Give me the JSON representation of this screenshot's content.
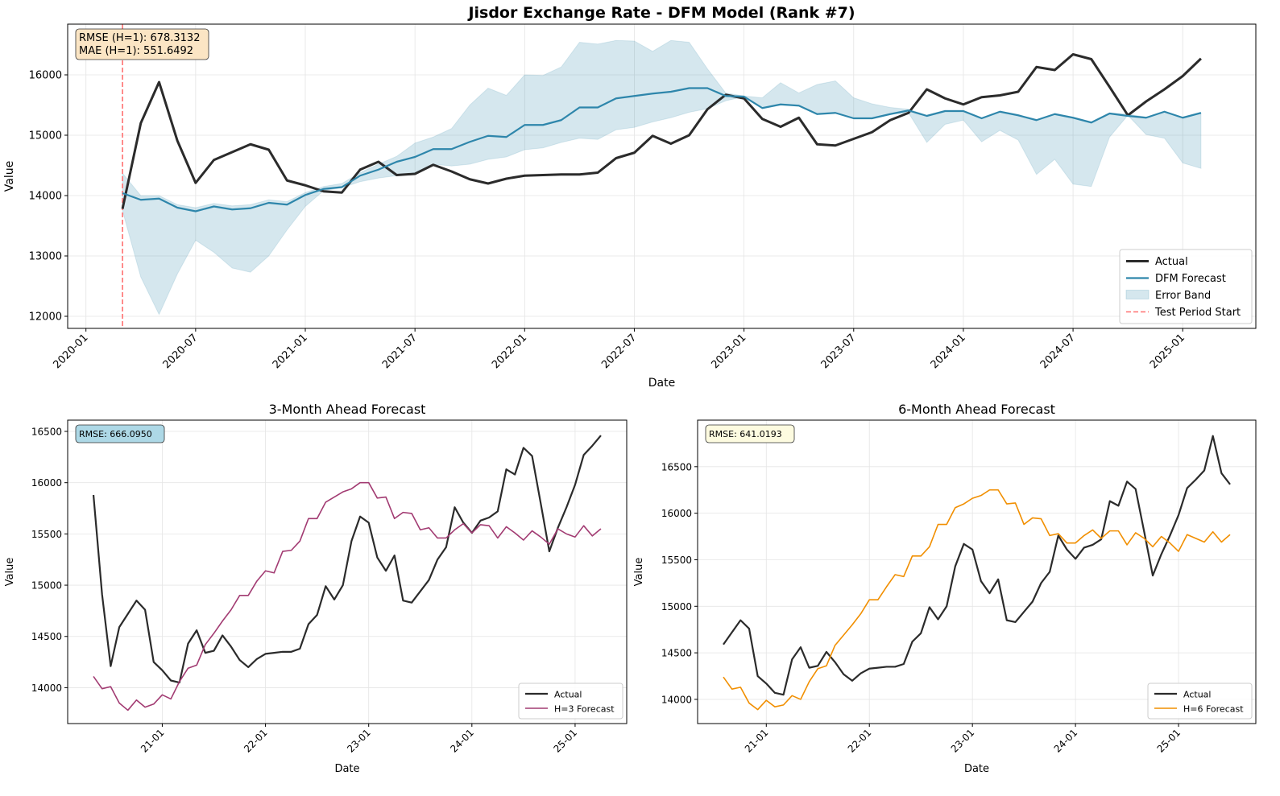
{
  "chart_data": [
    {
      "type": "line",
      "title": "Jisdor Exchange Rate - DFM Model (Rank #7)",
      "x_label": "Date",
      "y_label": "Value",
      "x": [
        "2020-03",
        "2020-04",
        "2020-05",
        "2020-06",
        "2020-07",
        "2020-08",
        "2020-09",
        "2020-10",
        "2020-11",
        "2020-12",
        "2021-01",
        "2021-02",
        "2021-03",
        "2021-04",
        "2021-05",
        "2021-06",
        "2021-07",
        "2021-08",
        "2021-09",
        "2021-10",
        "2021-11",
        "2021-12",
        "2022-01",
        "2022-02",
        "2022-03",
        "2022-04",
        "2022-05",
        "2022-06",
        "2022-07",
        "2022-08",
        "2022-09",
        "2022-10",
        "2022-11",
        "2022-12",
        "2023-01",
        "2023-02",
        "2023-03",
        "2023-04",
        "2023-05",
        "2023-06",
        "2023-07",
        "2023-08",
        "2023-09",
        "2023-10",
        "2023-11",
        "2023-12",
        "2024-01",
        "2024-02",
        "2024-03",
        "2024-04",
        "2024-05",
        "2024-06",
        "2024-07",
        "2024-08",
        "2024-09",
        "2024-10",
        "2024-11",
        "2024-12",
        "2025-01",
        "2025-02"
      ],
      "series": [
        {
          "name": "Actual",
          "kind": "line",
          "color": "#2b2b2b",
          "values": [
            13780,
            15200,
            15880,
            14910,
            14210,
            14590,
            14720,
            14850,
            14760,
            14250,
            14170,
            14070,
            14050,
            14430,
            14560,
            14340,
            14360,
            14510,
            14400,
            14270,
            14200,
            14280,
            14330,
            14340,
            14350,
            14350,
            14380,
            14620,
            14710,
            14990,
            14860,
            15000,
            15430,
            15670,
            15610,
            15270,
            15140,
            15290,
            14850,
            14830,
            14940,
            15050,
            15250,
            15370,
            15760,
            15610,
            15510,
            15630,
            15660,
            15720,
            16130,
            16080,
            16340,
            16260,
            15800,
            15330,
            15560,
            15760,
            15980,
            16270
          ]
        },
        {
          "name": "DFM Forecast",
          "kind": "line",
          "color": "#2e86ab",
          "values": [
            14040,
            13930,
            13950,
            13800,
            13740,
            13820,
            13770,
            13790,
            13880,
            13850,
            14010,
            14110,
            14140,
            14330,
            14430,
            14560,
            14640,
            14770,
            14770,
            14890,
            14990,
            14970,
            15170,
            15170,
            15250,
            15460,
            15460,
            15610,
            15650,
            15690,
            15720,
            15780,
            15780,
            15650,
            15640,
            15450,
            15510,
            15490,
            15350,
            15370,
            15280,
            15280,
            15350,
            15410,
            15320,
            15400,
            15400,
            15280,
            15390,
            15330,
            15250,
            15350,
            15290,
            15210,
            15360,
            15320,
            15290,
            15390,
            15290,
            15370
          ]
        },
        {
          "name": "Error Band",
          "kind": "band",
          "color": "#2e86ab",
          "lower": [
            13750,
            12650,
            12030,
            12700,
            13260,
            13060,
            12800,
            12730,
            13000,
            13430,
            13820,
            14080,
            14130,
            14230,
            14290,
            14330,
            14380,
            14520,
            14490,
            14520,
            14600,
            14640,
            14760,
            14790,
            14880,
            14950,
            14930,
            15090,
            15130,
            15220,
            15290,
            15380,
            15440,
            15570,
            15640,
            15450,
            15510,
            15490,
            15350,
            15370,
            15280,
            15280,
            15350,
            15370,
            14880,
            15180,
            15250,
            14890,
            15080,
            14920,
            14350,
            14600,
            14190,
            14150,
            14970,
            15330,
            15010,
            14950,
            14540,
            14450
          ],
          "upper": [
            14370,
            14000,
            14000,
            13850,
            13800,
            13870,
            13830,
            13850,
            13930,
            13900,
            14050,
            14150,
            14200,
            14380,
            14520,
            14650,
            14870,
            14970,
            15110,
            15500,
            15780,
            15660,
            16000,
            15990,
            16130,
            16540,
            16510,
            16570,
            16560,
            16390,
            16570,
            16540,
            16100,
            15700,
            15650,
            15620,
            15870,
            15700,
            15840,
            15900,
            15620,
            15520,
            15460,
            15430,
            15330,
            15410,
            15410,
            15290,
            15390,
            15330,
            15250,
            15350,
            15290,
            15220,
            15370,
            15350,
            15300,
            15390,
            15290,
            15370
          ]
        },
        {
          "name": "Test Period Start",
          "kind": "vline",
          "color": "#ff7070",
          "at": "2020-03"
        }
      ],
      "xlim": [
        "2019-12",
        "2025-05"
      ],
      "xticks": [
        "2020-01",
        "2020-07",
        "2021-01",
        "2021-07",
        "2022-01",
        "2022-07",
        "2023-01",
        "2023-07",
        "2024-01",
        "2024-07",
        "2025-01"
      ],
      "ylim": [
        11800,
        16840
      ],
      "yticks": [
        12000,
        13000,
        14000,
        15000,
        16000
      ],
      "grid": true,
      "legend": "lower right",
      "annotation": [
        "RMSE (H=1): 678.3132",
        "MAE (H=1): 551.6492"
      ],
      "annotation_color": "#fbe5c4"
    },
    {
      "type": "line",
      "title": "3-Month Ahead Forecast",
      "x_label": "Date",
      "y_label": "Value",
      "x": [
        "2020-05",
        "2020-06",
        "2020-07",
        "2020-08",
        "2020-09",
        "2020-10",
        "2020-11",
        "2020-12",
        "2021-01",
        "2021-02",
        "2021-03",
        "2021-04",
        "2021-05",
        "2021-06",
        "2021-07",
        "2021-08",
        "2021-09",
        "2021-10",
        "2021-11",
        "2021-12",
        "2022-01",
        "2022-02",
        "2022-03",
        "2022-04",
        "2022-05",
        "2022-06",
        "2022-07",
        "2022-08",
        "2022-09",
        "2022-10",
        "2022-11",
        "2022-12",
        "2023-01",
        "2023-02",
        "2023-03",
        "2023-04",
        "2023-05",
        "2023-06",
        "2023-07",
        "2023-08",
        "2023-09",
        "2023-10",
        "2023-11",
        "2023-12",
        "2024-01",
        "2024-02",
        "2024-03",
        "2024-04",
        "2024-05",
        "2024-06",
        "2024-07",
        "2024-08",
        "2024-09",
        "2024-10",
        "2024-11",
        "2024-12",
        "2025-01",
        "2025-02",
        "2025-03",
        "2025-04"
      ],
      "series": [
        {
          "name": "Actual",
          "kind": "line",
          "color": "#2b2b2b",
          "values": [
            15880,
            14910,
            14210,
            14590,
            14720,
            14850,
            14760,
            14250,
            14170,
            14070,
            14050,
            14430,
            14560,
            14340,
            14360,
            14510,
            14400,
            14270,
            14200,
            14280,
            14330,
            14340,
            14350,
            14350,
            14380,
            14620,
            14710,
            14990,
            14860,
            15000,
            15430,
            15670,
            15610,
            15270,
            15140,
            15290,
            14850,
            14830,
            14940,
            15050,
            15250,
            15370,
            15760,
            15610,
            15510,
            15630,
            15660,
            15720,
            16130,
            16080,
            16340,
            16260,
            15800,
            15330,
            15560,
            15760,
            15980,
            16270,
            16360,
            16460
          ]
        },
        {
          "name": "H=3 Forecast",
          "kind": "line",
          "color": "#a23b72",
          "values": [
            14110,
            13990,
            14010,
            13850,
            13780,
            13880,
            13810,
            13840,
            13930,
            13890,
            14060,
            14190,
            14220,
            14420,
            14530,
            14650,
            14760,
            14900,
            14900,
            15040,
            15140,
            15120,
            15330,
            15340,
            15430,
            15650,
            15650,
            15810,
            15860,
            15910,
            15940,
            16000,
            16000,
            15850,
            15860,
            15650,
            15710,
            15700,
            15540,
            15560,
            15460,
            15460,
            15540,
            15600,
            15510,
            15590,
            15580,
            15460,
            15570,
            15510,
            15440,
            15530,
            15470,
            15400,
            15550,
            15500,
            15470,
            15580,
            15480,
            15550
          ]
        }
      ],
      "xlim": [
        "2020-02",
        "2025-07"
      ],
      "xticks": [
        {
          "value": "2021-01",
          "label": "21-01"
        },
        {
          "value": "2022-01",
          "label": "22-01"
        },
        {
          "value": "2023-01",
          "label": "23-01"
        },
        {
          "value": "2024-01",
          "label": "24-01"
        },
        {
          "value": "2025-01",
          "label": "25-01"
        }
      ],
      "ylim": [
        13650,
        16610
      ],
      "yticks": [
        14000,
        14500,
        15000,
        15500,
        16000,
        16500
      ],
      "grid": true,
      "legend": "lower right",
      "annotation": [
        "RMSE: 666.0950"
      ],
      "annotation_color": "#add8e6"
    },
    {
      "type": "line",
      "title": "6-Month Ahead Forecast",
      "x_label": "Date",
      "y_label": "Value",
      "x": [
        "2020-08",
        "2020-09",
        "2020-10",
        "2020-11",
        "2020-12",
        "2021-01",
        "2021-02",
        "2021-03",
        "2021-04",
        "2021-05",
        "2021-06",
        "2021-07",
        "2021-08",
        "2021-09",
        "2021-10",
        "2021-11",
        "2021-12",
        "2022-01",
        "2022-02",
        "2022-03",
        "2022-04",
        "2022-05",
        "2022-06",
        "2022-07",
        "2022-08",
        "2022-09",
        "2022-10",
        "2022-11",
        "2022-12",
        "2023-01",
        "2023-02",
        "2023-03",
        "2023-04",
        "2023-05",
        "2023-06",
        "2023-07",
        "2023-08",
        "2023-09",
        "2023-10",
        "2023-11",
        "2023-12",
        "2024-01",
        "2024-02",
        "2024-03",
        "2024-04",
        "2024-05",
        "2024-06",
        "2024-07",
        "2024-08",
        "2024-09",
        "2024-10",
        "2024-11",
        "2024-12",
        "2025-01",
        "2025-02",
        "2025-03",
        "2025-04",
        "2025-05",
        "2025-06",
        "2025-07"
      ],
      "series": [
        {
          "name": "Actual",
          "kind": "line",
          "color": "#2b2b2b",
          "values": [
            14590,
            14720,
            14850,
            14760,
            14250,
            14170,
            14070,
            14050,
            14430,
            14560,
            14340,
            14360,
            14510,
            14400,
            14270,
            14200,
            14280,
            14330,
            14340,
            14350,
            14350,
            14380,
            14620,
            14710,
            14990,
            14860,
            15000,
            15430,
            15670,
            15610,
            15270,
            15140,
            15290,
            14850,
            14830,
            14940,
            15050,
            15250,
            15370,
            15760,
            15610,
            15510,
            15630,
            15660,
            15720,
            16130,
            16080,
            16340,
            16260,
            15800,
            15330,
            15560,
            15760,
            15980,
            16270,
            16360,
            16460,
            16830,
            16430,
            16310
          ]
        },
        {
          "name": "H=6 Forecast",
          "kind": "line",
          "color": "#f18f01",
          "values": [
            14240,
            14110,
            14130,
            13960,
            13890,
            13990,
            13920,
            13940,
            14040,
            14000,
            14190,
            14330,
            14360,
            14580,
            14690,
            14800,
            14920,
            15070,
            15070,
            15210,
            15340,
            15320,
            15540,
            15540,
            15640,
            15880,
            15880,
            16060,
            16100,
            16160,
            16190,
            16250,
            16250,
            16100,
            16110,
            15880,
            15950,
            15940,
            15760,
            15780,
            15680,
            15680,
            15760,
            15820,
            15730,
            15810,
            15810,
            15660,
            15790,
            15730,
            15640,
            15750,
            15680,
            15590,
            15770,
            15730,
            15690,
            15800,
            15690,
            15770
          ]
        }
      ],
      "xlim": [
        "2020-05",
        "2025-10"
      ],
      "xticks": [
        {
          "value": "2021-01",
          "label": "21-01"
        },
        {
          "value": "2022-01",
          "label": "22-01"
        },
        {
          "value": "2023-01",
          "label": "23-01"
        },
        {
          "value": "2024-01",
          "label": "24-01"
        },
        {
          "value": "2025-01",
          "label": "25-01"
        }
      ],
      "ylim": [
        13740,
        17000
      ],
      "yticks": [
        14000,
        14500,
        15000,
        15500,
        16000,
        16500
      ],
      "grid": true,
      "legend": "lower right",
      "annotation": [
        "RMSE: 641.0193"
      ],
      "annotation_color": "#fdfbe0"
    }
  ]
}
